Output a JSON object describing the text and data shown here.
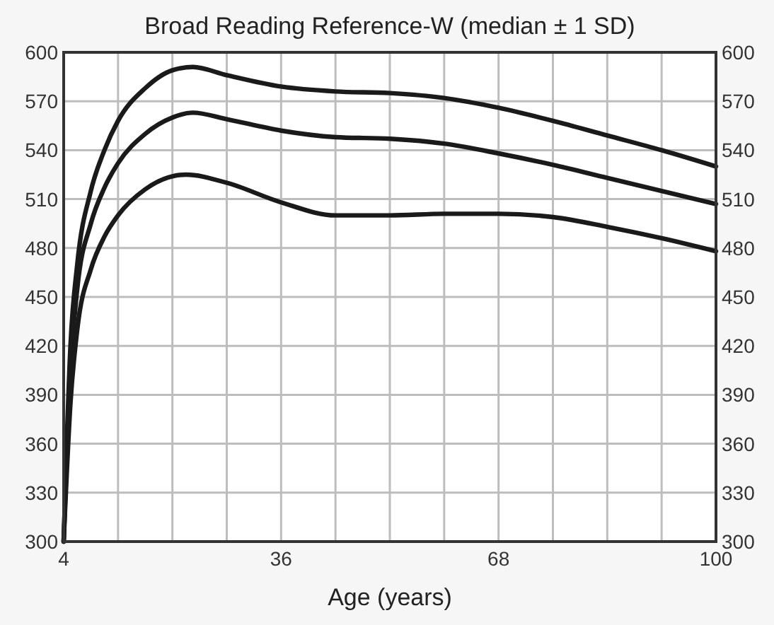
{
  "chart_data": {
    "type": "line",
    "title": "Broad Reading Reference-W (median ± 1 SD)",
    "xlabel": "Age (years)",
    "xlim": [
      4,
      100
    ],
    "xticks": [
      4,
      {
        "value": 12,
        "label": null
      },
      {
        "value": 20,
        "label": null
      },
      {
        "value": 28,
        "label": null
      },
      36,
      {
        "value": 44,
        "label": null
      },
      {
        "value": 52,
        "label": null
      },
      {
        "value": 60,
        "label": null
      },
      68,
      {
        "value": 76,
        "label": null
      },
      {
        "value": 84,
        "label": null
      },
      {
        "value": 92,
        "label": null
      },
      100
    ],
    "ylim": [
      300,
      600
    ],
    "yticks": [
      300,
      330,
      360,
      390,
      420,
      450,
      480,
      510,
      540,
      570,
      600
    ],
    "y2lim": [
      300,
      600
    ],
    "y2ticks": [
      300,
      330,
      360,
      390,
      420,
      450,
      480,
      510,
      540,
      570,
      600
    ],
    "grid": true,
    "marker": "none",
    "line_style": "solid",
    "series": [
      {
        "color": "#1a1a1a",
        "x": [
          4,
          5,
          6,
          8,
          10,
          12,
          16,
          20,
          23,
          28,
          36,
          44,
          52,
          60,
          68,
          76,
          84,
          92,
          100
        ],
        "values": [
          300,
          420,
          470,
          515,
          540,
          558,
          578,
          589,
          591,
          586,
          579,
          576,
          575,
          572,
          566,
          558,
          549,
          540,
          530
        ]
      },
      {
        "color": "#1a1a1a",
        "x": [
          4,
          5,
          6,
          8,
          10,
          12,
          16,
          20,
          23,
          28,
          36,
          44,
          52,
          60,
          68,
          76,
          84,
          92,
          100
        ],
        "values": [
          300,
          405,
          455,
          495,
          517,
          532,
          550,
          560,
          563,
          559,
          552,
          548,
          547,
          544,
          538,
          531,
          523,
          515,
          507
        ]
      },
      {
        "color": "#1a1a1a",
        "x": [
          4,
          5,
          6,
          8,
          10,
          12,
          16,
          20,
          22,
          28,
          36,
          44,
          52,
          60,
          68,
          76,
          84,
          92,
          100
        ],
        "values": [
          300,
          385,
          430,
          467,
          487,
          500,
          516,
          524,
          525,
          520,
          508,
          500,
          500,
          501,
          501,
          499,
          493,
          486,
          478
        ]
      }
    ]
  }
}
